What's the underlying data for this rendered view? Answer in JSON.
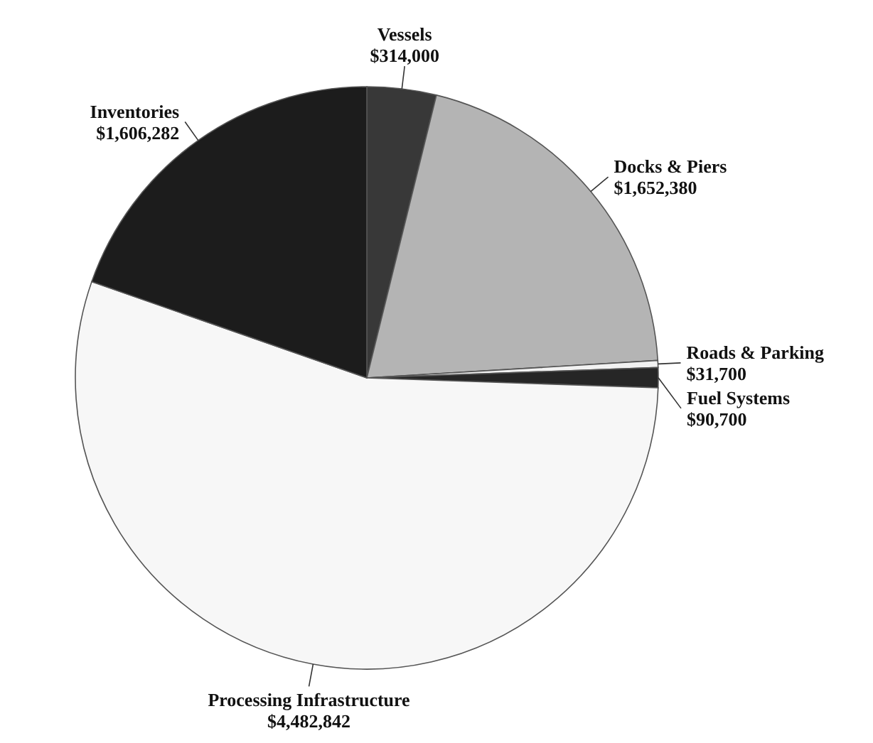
{
  "chart_data": {
    "type": "pie",
    "categories": [
      "Vessels",
      "Docks & Piers",
      "Roads & Parking",
      "Fuel Systems",
      "Processing Infrastructure",
      "Inventories"
    ],
    "values": [
      314000,
      1652380,
      31700,
      90700,
      4482842,
      1606282
    ],
    "value_labels": [
      "$314,000",
      "$1,652,380",
      "$31,700",
      "$90,700",
      "$4,482,842",
      "$1,606,282"
    ],
    "colors": [
      "#383838",
      "#b4b4b4",
      "#f2f2f2",
      "#262626",
      "#f7f7f7",
      "#1c1c1c"
    ]
  }
}
